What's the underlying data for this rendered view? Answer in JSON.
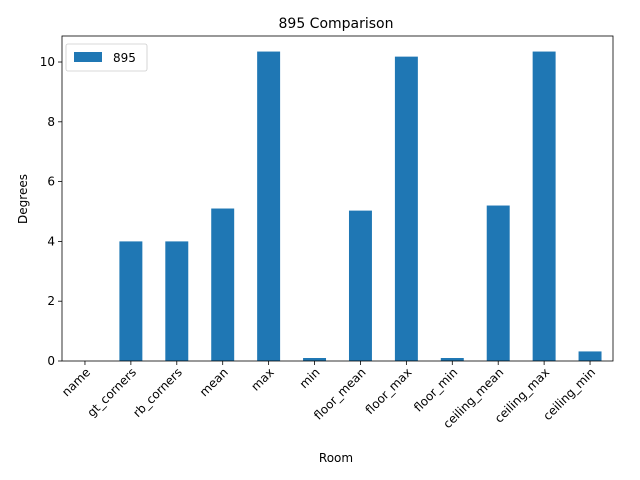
{
  "chart_data": {
    "type": "bar",
    "title": "895 Comparison",
    "xlabel": "Room",
    "ylabel": "Degrees",
    "categories": [
      "name",
      "gt_corners",
      "rb_corners",
      "mean",
      "max",
      "min",
      "floor_mean",
      "floor_max",
      "floor_min",
      "ceiling_mean",
      "ceiling_max",
      "ceiling_min"
    ],
    "series": [
      {
        "name": "895",
        "color": "#1f77b4",
        "values": [
          0,
          4,
          4,
          5.1,
          10.35,
          0.1,
          5.03,
          10.18,
          0.1,
          5.2,
          10.35,
          0.32
        ]
      }
    ],
    "ylim": [
      0,
      10.87
    ],
    "yticks": [
      0,
      2,
      4,
      6,
      8,
      10
    ],
    "ytick_labels": [
      "0",
      "2",
      "4",
      "6",
      "8",
      "10"
    ],
    "grid": false,
    "legend": "upper-left"
  }
}
